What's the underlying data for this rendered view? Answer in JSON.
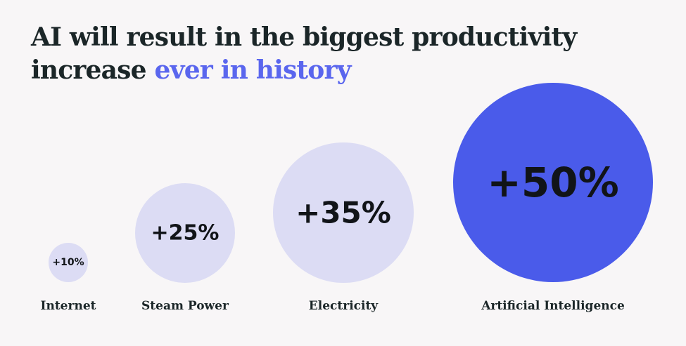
{
  "header": {
    "title_line1": "AI will result in the biggest productivity",
    "title_line2_plain": "increase",
    "title_line2_accent": "ever in history"
  },
  "colors": {
    "background": "#f8f6f7",
    "text": "#1b2628",
    "accent_text": "#5a66ee",
    "bubble_light": "#dcdcf4",
    "bubble_highlight": "#4a5bea",
    "highlight_label": "#ffffff"
  },
  "chart_data": {
    "type": "bubble",
    "title": "AI will result in the biggest productivity increase ever in history",
    "categories": [
      "Internet",
      "Steam Power",
      "Electricity",
      "Artificial Intelligence"
    ],
    "values": [
      10,
      25,
      35,
      50
    ],
    "value_labels": [
      "+10%",
      "+25%",
      "+35%",
      "+50%"
    ],
    "unit": "%",
    "highlighted_category": "Artificial Intelligence",
    "axes": "none",
    "grid": false,
    "legend": "none"
  }
}
